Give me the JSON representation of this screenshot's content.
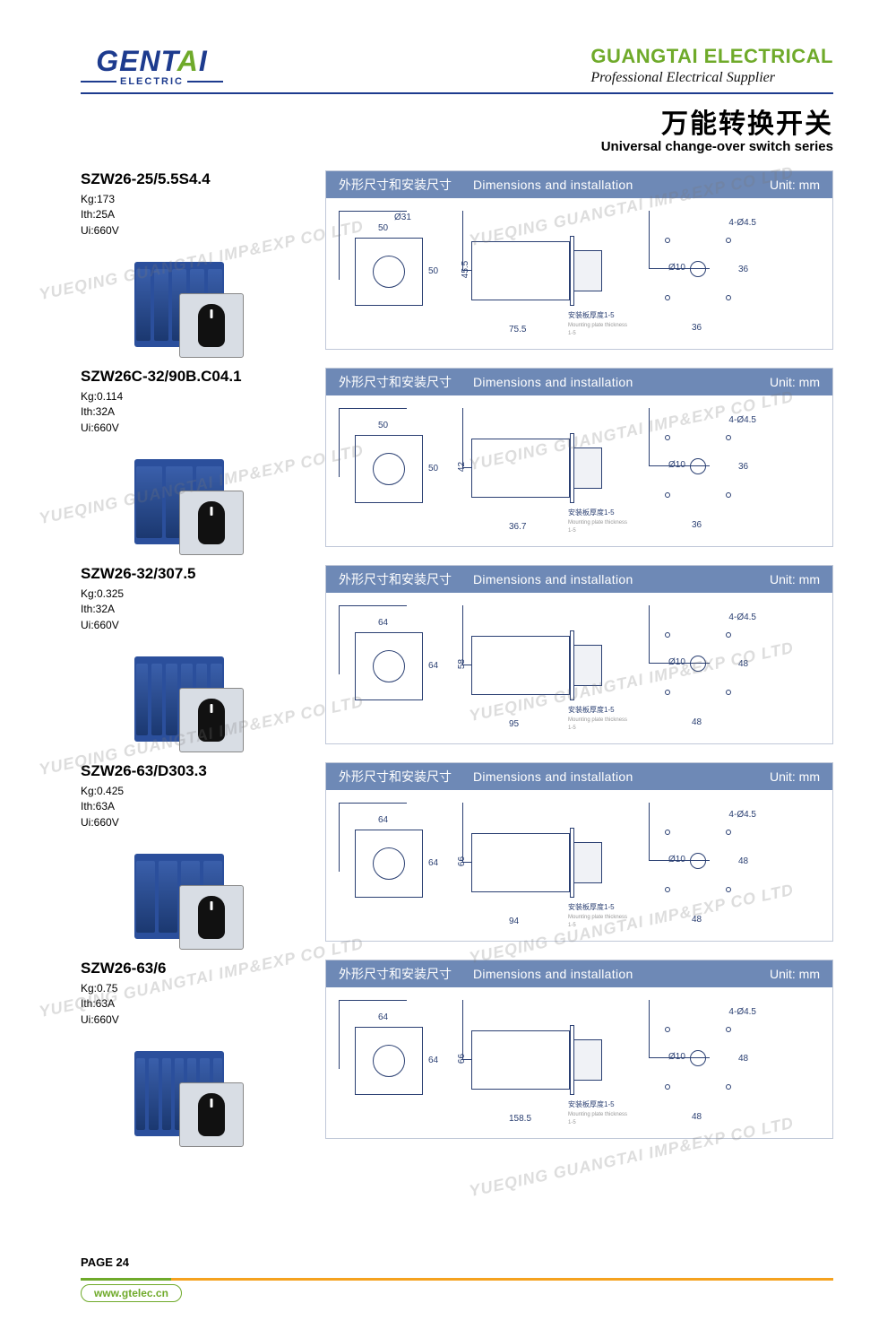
{
  "brand": {
    "logo_main": "GENTAI",
    "logo_sub": "ELECTRIC",
    "company": "GUANGTAI ELECTRICAL",
    "tagline": "Professional Electrical Supplier"
  },
  "series": {
    "title_cn": "万能转换开关",
    "title_en": "Universal change-over switch series"
  },
  "diagram_header": {
    "cn": "外形尺寸和安装尺寸",
    "en": "Dimensions and installation",
    "unit": "Unit: mm"
  },
  "mount_note_cn": "安装板厚度1-5",
  "mount_note_en": "Mounting plate thickness 1-5",
  "hole_spec": "4-Ø4.5",
  "shaft_spec": "Ø10",
  "products": [
    {
      "model": "SZW26-25/5.5S4.4",
      "kg": "Kg:173",
      "ith": "Ith:25A",
      "ui": "Ui:660V",
      "ribs": 5,
      "dims": {
        "front_w": "50",
        "front_h": "50",
        "front_circ": "Ø31",
        "side_h": "45.5",
        "side_d": "75.5",
        "mount_w": "36",
        "mount_h": "36"
      }
    },
    {
      "model": "SZW26C-32/90B.C04.1",
      "kg": "Kg:0.114",
      "ith": "Ith:32A",
      "ui": "Ui:660V",
      "ribs": 3,
      "dims": {
        "front_w": "50",
        "front_h": "50",
        "front_circ": "",
        "side_h": "42",
        "side_d": "36.7",
        "mount_w": "36",
        "mount_h": "36"
      }
    },
    {
      "model": "SZW26-32/307.5",
      "kg": "Kg:0.325",
      "ith": "Ith:32A",
      "ui": "Ui:660V",
      "ribs": 6,
      "dims": {
        "front_w": "64",
        "front_h": "64",
        "front_circ": "",
        "side_h": "58",
        "side_d": "95",
        "mount_w": "48",
        "mount_h": "48"
      }
    },
    {
      "model": "SZW26-63/D303.3",
      "kg": "Kg:0.425",
      "ith": "Ith:63A",
      "ui": "Ui:660V",
      "ribs": 4,
      "dims": {
        "front_w": "64",
        "front_h": "64",
        "front_circ": "",
        "side_h": "66",
        "side_d": "94",
        "mount_w": "48",
        "mount_h": "48"
      }
    },
    {
      "model": "SZW26-63/6",
      "kg": "Kg:0.75",
      "ith": "Ith:63A",
      "ui": "Ui:660V",
      "ribs": 7,
      "dims": {
        "front_w": "64",
        "front_h": "64",
        "front_circ": "",
        "side_h": "66",
        "side_d": "158.5",
        "mount_w": "48",
        "mount_h": "48"
      }
    }
  ],
  "footer": {
    "page": "PAGE 24",
    "website": "www.gtelec.cn"
  },
  "watermark": "YUEQING GUANGTAI IMP&EXP CO LTD",
  "colors": {
    "blue_header": "#6e89b6",
    "dark_blue": "#1d3b8e",
    "green": "#6faa2a",
    "orange": "#f5a21f",
    "diagram_line": "#2a3f72",
    "switch_blue": "#2b4f9c"
  }
}
